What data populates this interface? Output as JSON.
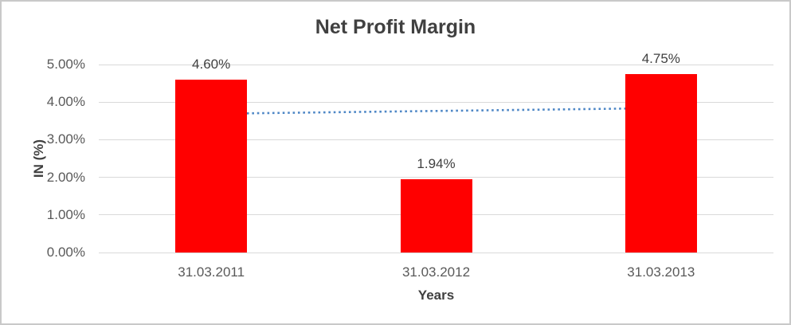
{
  "chart_data": {
    "type": "bar",
    "title": "Net Profit Margin",
    "xlabel": "Years",
    "ylabel": "IN (%)",
    "categories": [
      "31.03.2011",
      "31.03.2012",
      "31.03.2013"
    ],
    "values": [
      4.6,
      1.94,
      4.75
    ],
    "data_labels": [
      "4.60%",
      "1.94%",
      "4.75%"
    ],
    "y_ticks": [
      "0.00%",
      "1.00%",
      "2.00%",
      "3.00%",
      "4.00%",
      "5.00%"
    ],
    "ylim": [
      0,
      5
    ],
    "grid": true,
    "legend": false,
    "bar_color": "#ff0000",
    "trendline": {
      "type": "linear",
      "style": "dotted",
      "color": "#4e87c6",
      "start_value": 3.69,
      "end_value": 3.84
    },
    "colors": {
      "grid": "#d9d9d9",
      "title_text": "#404040",
      "tick_text": "#595959",
      "border": "#c9c9c9",
      "background": "#ffffff"
    }
  }
}
